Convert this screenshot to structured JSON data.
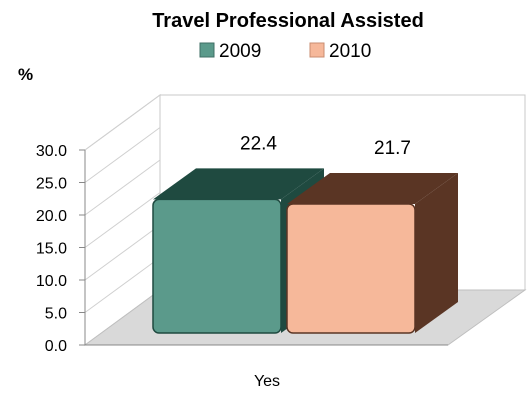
{
  "chart_data": {
    "type": "bar",
    "title": "Travel Professional Assisted",
    "ylabel": "%",
    "categories": [
      "Yes"
    ],
    "ylim": [
      0,
      30
    ],
    "yticks": [
      "0.0",
      "5.0",
      "10.0",
      "15.0",
      "20.0",
      "25.0",
      "30.0"
    ],
    "grid": false,
    "legend_position": "top",
    "series": [
      {
        "name": "2009",
        "values": [
          22.4
        ],
        "value_labels": [
          "22.4"
        ],
        "color": "#5b9a8b",
        "top_color": "#1f4a40"
      },
      {
        "name": "2010",
        "values": [
          21.7
        ],
        "value_labels": [
          "21.7"
        ],
        "color": "#f6b89a",
        "top_color": "#5a3524"
      }
    ]
  }
}
